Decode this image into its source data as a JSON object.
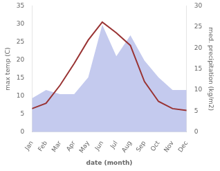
{
  "chart_data": {
    "type": "line",
    "categories": [
      "Jan",
      "Feb",
      "Mar",
      "Apr",
      "May",
      "Jun",
      "Jul",
      "Aug",
      "Sep",
      "Oct",
      "Nov",
      "Dec"
    ],
    "series": [
      {
        "type": "area",
        "axis": "y2",
        "color": "#b0b8e8",
        "values": [
          8.0,
          10.0,
          9.0,
          9.0,
          13.0,
          25.5,
          18.0,
          23.0,
          17.0,
          13.0,
          10.0,
          10.0
        ]
      },
      {
        "type": "line",
        "color": "#993333",
        "values": [
          6.5,
          8.0,
          13.0,
          19.0,
          25.5,
          30.5,
          27.5,
          24.0,
          14.0,
          8.5,
          6.5,
          6.0
        ]
      }
    ],
    "xlabel": "date (month)",
    "ylabel": "max temp (C)",
    "y2label": "med. precipitation (kg/m2)",
    "ylim": [
      0,
      35
    ],
    "yticks": [
      0,
      5,
      10,
      15,
      20,
      25,
      30,
      35
    ],
    "y2lim": [
      0,
      30
    ],
    "y2ticks": [
      0,
      5,
      10,
      15,
      20,
      25,
      30
    ],
    "grid": false
  }
}
